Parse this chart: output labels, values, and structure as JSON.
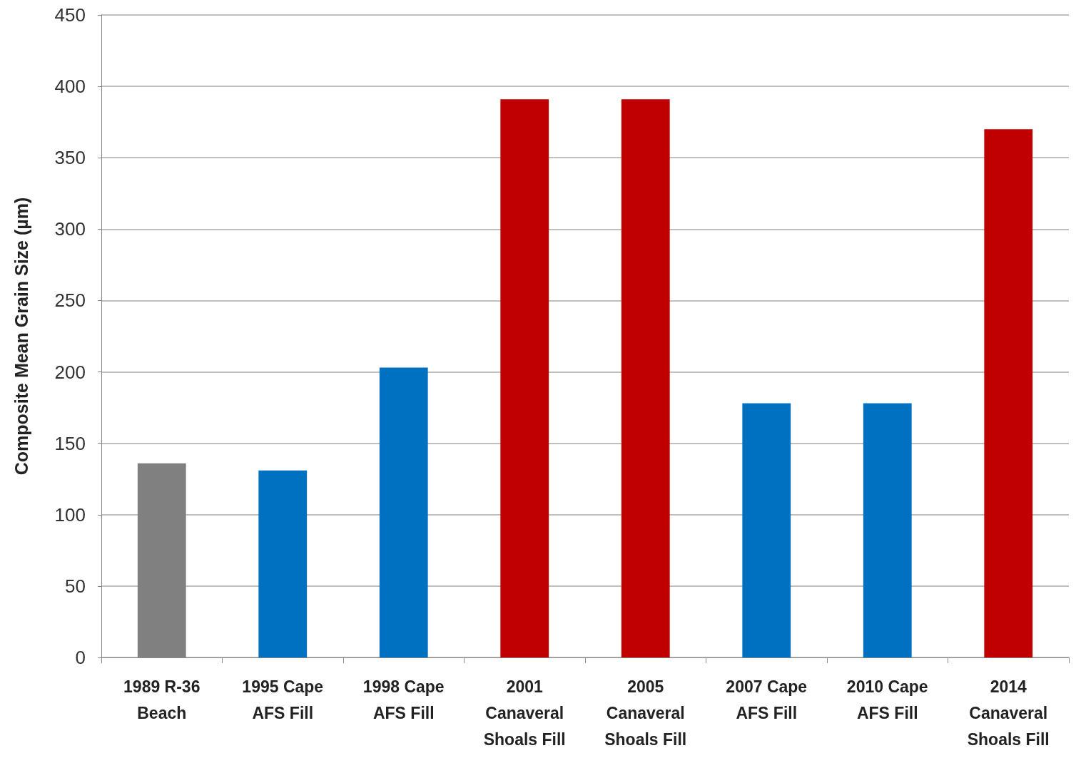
{
  "chart_data": {
    "type": "bar",
    "ylabel": "Composite Mean Grain Size (µm)",
    "categories": [
      "1989 R-36\nBeach",
      "1995 Cape\nAFS Fill",
      "1998 Cape\nAFS Fill",
      "2001\nCanaveral\nShoals Fill",
      "2005\nCanaveral\nShoals Fill",
      "2007 Cape\nAFS Fill",
      "2010 Cape\nAFS Fill",
      "2014\nCanaveral\nShoals Fill"
    ],
    "values": [
      136,
      131,
      203,
      391,
      391,
      178,
      178,
      370
    ],
    "colors": [
      "#808080",
      "#0070c0",
      "#0070c0",
      "#c00000",
      "#c00000",
      "#0070c0",
      "#0070c0",
      "#c00000"
    ],
    "ylim": [
      0,
      450
    ],
    "yticks": [
      0,
      50,
      100,
      150,
      200,
      250,
      300,
      350,
      400,
      450
    ],
    "grid": "y"
  }
}
